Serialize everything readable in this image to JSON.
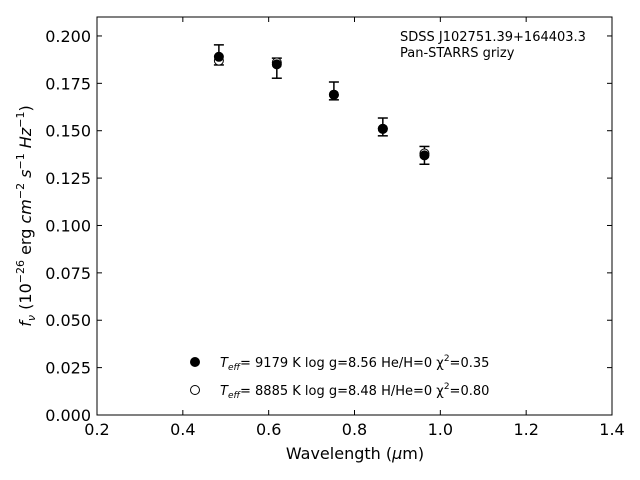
{
  "chart_data": {
    "type": "scatter",
    "title": "",
    "xlabel": "Wavelength (μm)",
    "ylabel": "fν (10⁻²⁶ erg cm⁻² s⁻¹ Hz⁻¹)",
    "xlim": [
      0.2,
      1.4
    ],
    "ylim": [
      0.0,
      0.21
    ],
    "x_ticks": [
      0.2,
      0.4,
      0.6,
      0.8,
      1.0,
      1.2,
      1.4
    ],
    "x_tick_labels": [
      "0.2",
      "0.4",
      "0.6",
      "0.8",
      "1.0",
      "1.2",
      "1.4"
    ],
    "y_ticks": [
      0.0,
      0.025,
      0.05,
      0.075,
      0.1,
      0.125,
      0.15,
      0.175,
      0.2
    ],
    "y_tick_labels": [
      "0.000",
      "0.025",
      "0.050",
      "0.075",
      "0.100",
      "0.125",
      "0.150",
      "0.175",
      "0.200"
    ],
    "grid": false,
    "legend_position": "bottom-center",
    "annotation": [
      "SDSS J102751.39+164403.3",
      "Pan-STARRS grizy"
    ],
    "observed": {
      "x": [
        0.484,
        0.619,
        0.752,
        0.866,
        0.963
      ],
      "y": [
        0.19,
        0.183,
        0.171,
        0.152,
        0.137
      ],
      "yerr_low": [
        0.0053,
        0.0053,
        0.0047,
        0.0047,
        0.0047
      ],
      "yerr_high": [
        0.0053,
        0.0053,
        0.0047,
        0.0047,
        0.0047
      ]
    },
    "series": [
      {
        "name": "Teff= 9179 K log g=8.56 He/H=0 χ²=0.35",
        "marker": "filled-circle",
        "x": [
          0.484,
          0.619,
          0.752,
          0.866,
          0.963
        ],
        "y": [
          0.189,
          0.185,
          0.169,
          0.151,
          0.137
        ]
      },
      {
        "name": "Teff= 8885 K log g=8.48 H/He=0 χ²=0.80",
        "marker": "open-circle",
        "x": [
          0.484,
          0.619,
          0.752,
          0.866,
          0.963
        ],
        "y": [
          0.187,
          0.186,
          0.169,
          0.151,
          0.138
        ]
      }
    ],
    "legend": [
      {
        "teff_label": "T",
        "teff_sub": "eff",
        "rest": "=  9179 K  log g=8.56  He/H=0  χ",
        "chi_sup": "2",
        "chi_val": "=0.35"
      },
      {
        "teff_label": "T",
        "teff_sub": "eff",
        "rest": "=  8885 K  log g=8.48  H/He=0  χ",
        "chi_sup": "2",
        "chi_val": "=0.80"
      }
    ]
  }
}
